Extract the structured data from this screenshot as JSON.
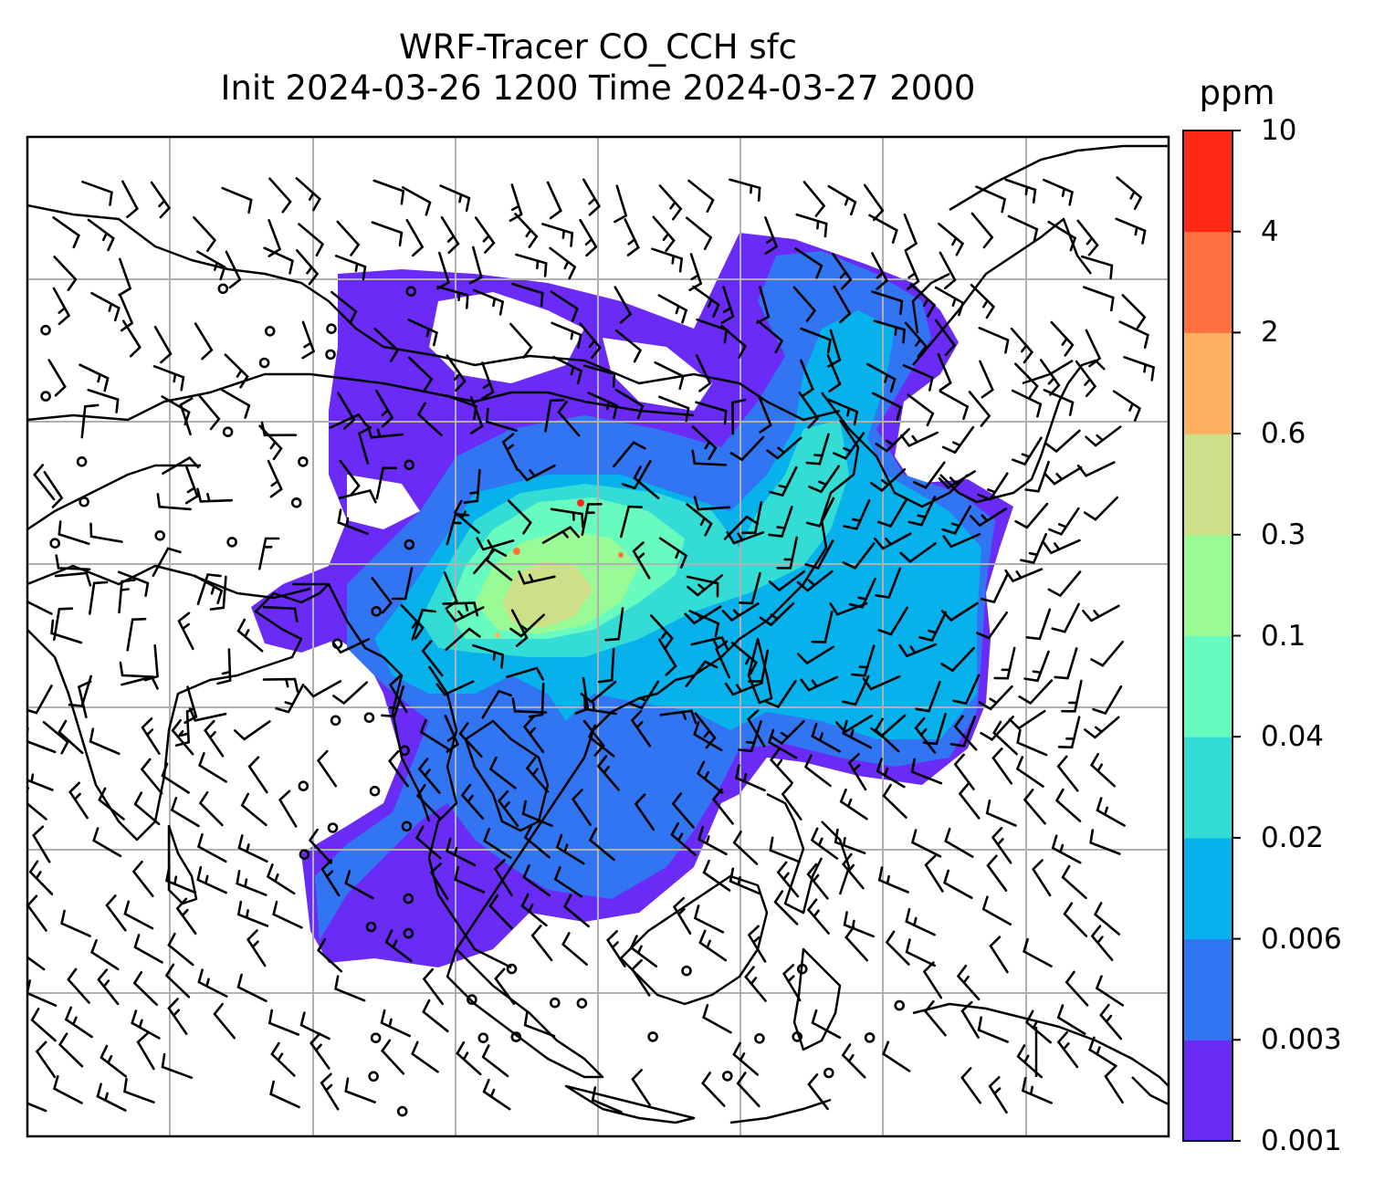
{
  "title": {
    "line1": "WRF-Tracer CO_CCH sfc",
    "line2": "Init 2024-03-26 1200 Time 2024-03-27 2000"
  },
  "colorbar": {
    "unit": "ppm",
    "levels": [
      "0.001",
      "0.003",
      "0.006",
      "0.02",
      "0.04",
      "0.1",
      "0.3",
      "0.6",
      "2",
      "4",
      "10"
    ],
    "colors": [
      "#6a2bf7",
      "#3275f2",
      "#06b1ec",
      "#33dcd5",
      "#67fbbf",
      "#98fb96",
      "#cde088",
      "#fdb061",
      "#fe7040",
      "#ff2916"
    ]
  },
  "colors": {
    "coastline": "#000000",
    "gridline": "#b0b0b0",
    "frame": "#000000"
  }
}
